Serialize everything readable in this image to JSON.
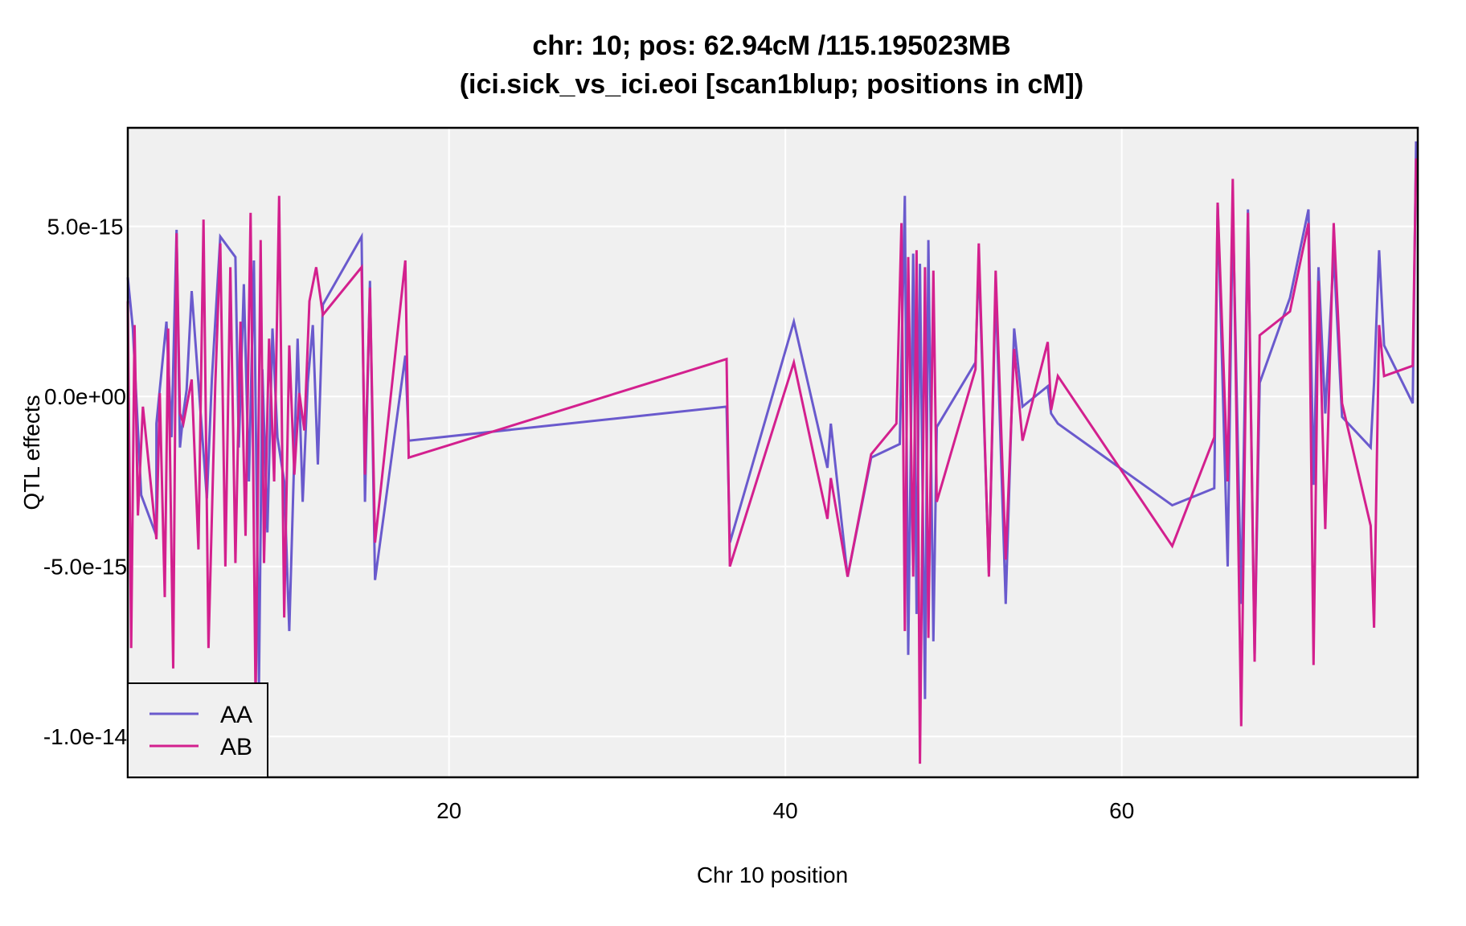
{
  "chart_data": {
    "type": "line",
    "title": "chr: 10; pos: 62.94cM /115.195023MB",
    "subtitle": "(ici.sick_vs_ici.eoi [scan1blup; positions in cM])",
    "xlabel": "Chr 10 position",
    "ylabel": "QTL effects",
    "xlim": [
      0.9,
      77.6
    ],
    "ylim": [
      -1.12e-14,
      7.9e-15
    ],
    "xticks": [
      20,
      40,
      60
    ],
    "xtick_labels": [
      "20",
      "40",
      "60"
    ],
    "yticks": [
      5e-15,
      0,
      -5e-15,
      -1e-14
    ],
    "ytick_labels": [
      "5.0e-15",
      "0.0e+00",
      "-5.0e-15",
      "-1.0e-14"
    ],
    "grid": true,
    "background": "#f0f0f0",
    "legend_position": "bottom-left",
    "series": [
      {
        "name": "AA",
        "color": "#6a5acd",
        "x": [
          0.9,
          1.2,
          1.7,
          2.6,
          2.6,
          3.2,
          3.5,
          3.8,
          4.0,
          4.2,
          4.4,
          4.7,
          5.6,
          5.9,
          6.4,
          7.3,
          7.5,
          7.8,
          8.1,
          8.4,
          8.7,
          8.9,
          9.2,
          9.5,
          9.8,
          10.2,
          10.5,
          11.0,
          11.3,
          11.6,
          11.9,
          12.2,
          12.5,
          14.8,
          15.0,
          15.3,
          15.6,
          17.4,
          17.6,
          36.5,
          36.7,
          40.5,
          42.5,
          42.7,
          43.7,
          45.1,
          46.8,
          47.1,
          47.3,
          47.6,
          47.8,
          48.0,
          48.3,
          48.5,
          48.8,
          49.0,
          51.3,
          51.5,
          52.1,
          52.5,
          53.1,
          53.6,
          54.1,
          55.6,
          55.8,
          56.2,
          63.0,
          65.5,
          65.7,
          66.3,
          66.6,
          67.1,
          67.5,
          67.9,
          68.2,
          70.0,
          71.1,
          71.4,
          71.7,
          72.1,
          72.6,
          73.1,
          74.8,
          75.0,
          75.3,
          75.6,
          77.3,
          77.5
        ],
        "y": [
          3.5e-15,
          2e-15,
          -2.9e-15,
          -4.1e-15,
          -8e-16,
          2.2e-15,
          -1.2e-15,
          4.9e-15,
          -1.5e-15,
          -5e-16,
          2e-16,
          3.1e-15,
          -3e-15,
          5e-16,
          4.7e-15,
          4.1e-15,
          -1.5e-15,
          3.3e-15,
          -2.5e-15,
          4e-15,
          -8.5e-15,
          8e-16,
          -4e-15,
          2e-15,
          -1.2e-15,
          -2.5e-15,
          -6.9e-15,
          1.7e-15,
          -3.1e-15,
          4e-16,
          2.1e-15,
          -2e-15,
          2.7e-15,
          4.7e-15,
          -3.1e-15,
          3.4e-15,
          -5.4e-15,
          1.2e-15,
          -1.3e-15,
          -3e-16,
          -4.3e-15,
          2.2e-15,
          -2.1e-15,
          -8e-16,
          -5.3e-15,
          -1.8e-15,
          -1.4e-15,
          5.9e-15,
          -7.6e-15,
          4.2e-15,
          -6.4e-15,
          3.9e-15,
          -8.9e-15,
          4.6e-15,
          -7.2e-15,
          -9e-16,
          1e-15,
          4e-15,
          -5.2e-15,
          3.2e-15,
          -6.1e-15,
          2e-15,
          -3e-16,
          3e-16,
          -5e-16,
          -8e-16,
          -3.2e-15,
          -2.7e-15,
          5.7e-15,
          -5e-15,
          5.6e-15,
          -6.1e-15,
          5.5e-15,
          -7.6e-15,
          4e-16,
          2.9e-15,
          5.5e-15,
          -2.6e-15,
          3.8e-15,
          -5e-16,
          4.2e-15,
          -6e-16,
          -1.5e-15,
          4e-16,
          4.3e-15,
          1.5e-15,
          -2e-16,
          7.5e-15
        ]
      },
      {
        "name": "AB",
        "color": "#d3208e",
        "x": [
          0.9,
          1.1,
          1.3,
          1.5,
          1.8,
          2.6,
          2.8,
          3.1,
          3.3,
          3.6,
          3.8,
          4.0,
          4.2,
          4.7,
          5.1,
          5.4,
          5.7,
          6.1,
          6.4,
          6.7,
          7.0,
          7.3,
          7.6,
          7.9,
          8.2,
          8.5,
          8.8,
          9.0,
          9.3,
          9.6,
          9.9,
          10.2,
          10.5,
          10.8,
          11.1,
          11.4,
          11.7,
          12.1,
          12.5,
          14.8,
          15.0,
          15.3,
          15.6,
          17.4,
          17.6,
          36.5,
          36.7,
          40.5,
          42.5,
          42.7,
          43.7,
          45.1,
          46.6,
          46.9,
          47.1,
          47.3,
          47.6,
          47.8,
          48.0,
          48.3,
          48.5,
          48.8,
          49.0,
          51.3,
          51.5,
          52.1,
          52.5,
          53.1,
          53.6,
          54.1,
          55.6,
          55.8,
          56.2,
          63.0,
          65.5,
          65.7,
          66.3,
          66.6,
          67.1,
          67.5,
          67.9,
          68.2,
          70.0,
          71.1,
          71.4,
          71.7,
          72.1,
          72.6,
          73.1,
          74.8,
          75.0,
          75.3,
          75.6,
          77.3,
          77.5
        ],
        "y": [
          2.8e-15,
          -7.4e-15,
          2.1e-15,
          -3.5e-15,
          -3e-16,
          -4.2e-15,
          1e-16,
          -5.9e-15,
          2e-15,
          -8e-15,
          4.8e-15,
          -5e-16,
          -8e-16,
          5e-16,
          -4.5e-15,
          5.2e-15,
          -7.4e-15,
          3e-16,
          4.5e-15,
          -5e-15,
          3.8e-15,
          -4.9e-15,
          2.2e-15,
          -4.1e-15,
          5.4e-15,
          -9e-15,
          4.6e-15,
          -4.9e-15,
          1.7e-15,
          -2.5e-15,
          5.9e-15,
          -6.5e-15,
          1.5e-15,
          -2.3e-15,
          1e-16,
          -1e-15,
          2.8e-15,
          3.8e-15,
          2.4e-15,
          3.8e-15,
          -2.3e-15,
          3.2e-15,
          -4.3e-15,
          4e-15,
          -1.8e-15,
          1.1e-15,
          -5e-15,
          1e-15,
          -3.6e-15,
          -2.4e-15,
          -5.3e-15,
          -1.7e-15,
          -8e-16,
          5.1e-15,
          -6.9e-15,
          4.1e-15,
          -5.3e-15,
          4.3e-15,
          -1.08e-14,
          3.8e-15,
          -7.1e-15,
          3.7e-15,
          -3.1e-15,
          8e-16,
          4.5e-15,
          -5.3e-15,
          3.7e-15,
          -4.8e-15,
          1.4e-15,
          -1.3e-15,
          1.6e-15,
          -4e-16,
          6e-16,
          -4.4e-15,
          -1.2e-15,
          5.7e-15,
          -2.5e-15,
          6.4e-15,
          -9.7e-15,
          5.4e-15,
          -7.8e-15,
          1.8e-15,
          2.5e-15,
          5.1e-15,
          -7.9e-15,
          3.4e-15,
          -3.9e-15,
          5.1e-15,
          -2e-16,
          -3.8e-15,
          -6.8e-15,
          2.1e-15,
          6e-16,
          9e-16,
          7e-15
        ]
      }
    ]
  }
}
